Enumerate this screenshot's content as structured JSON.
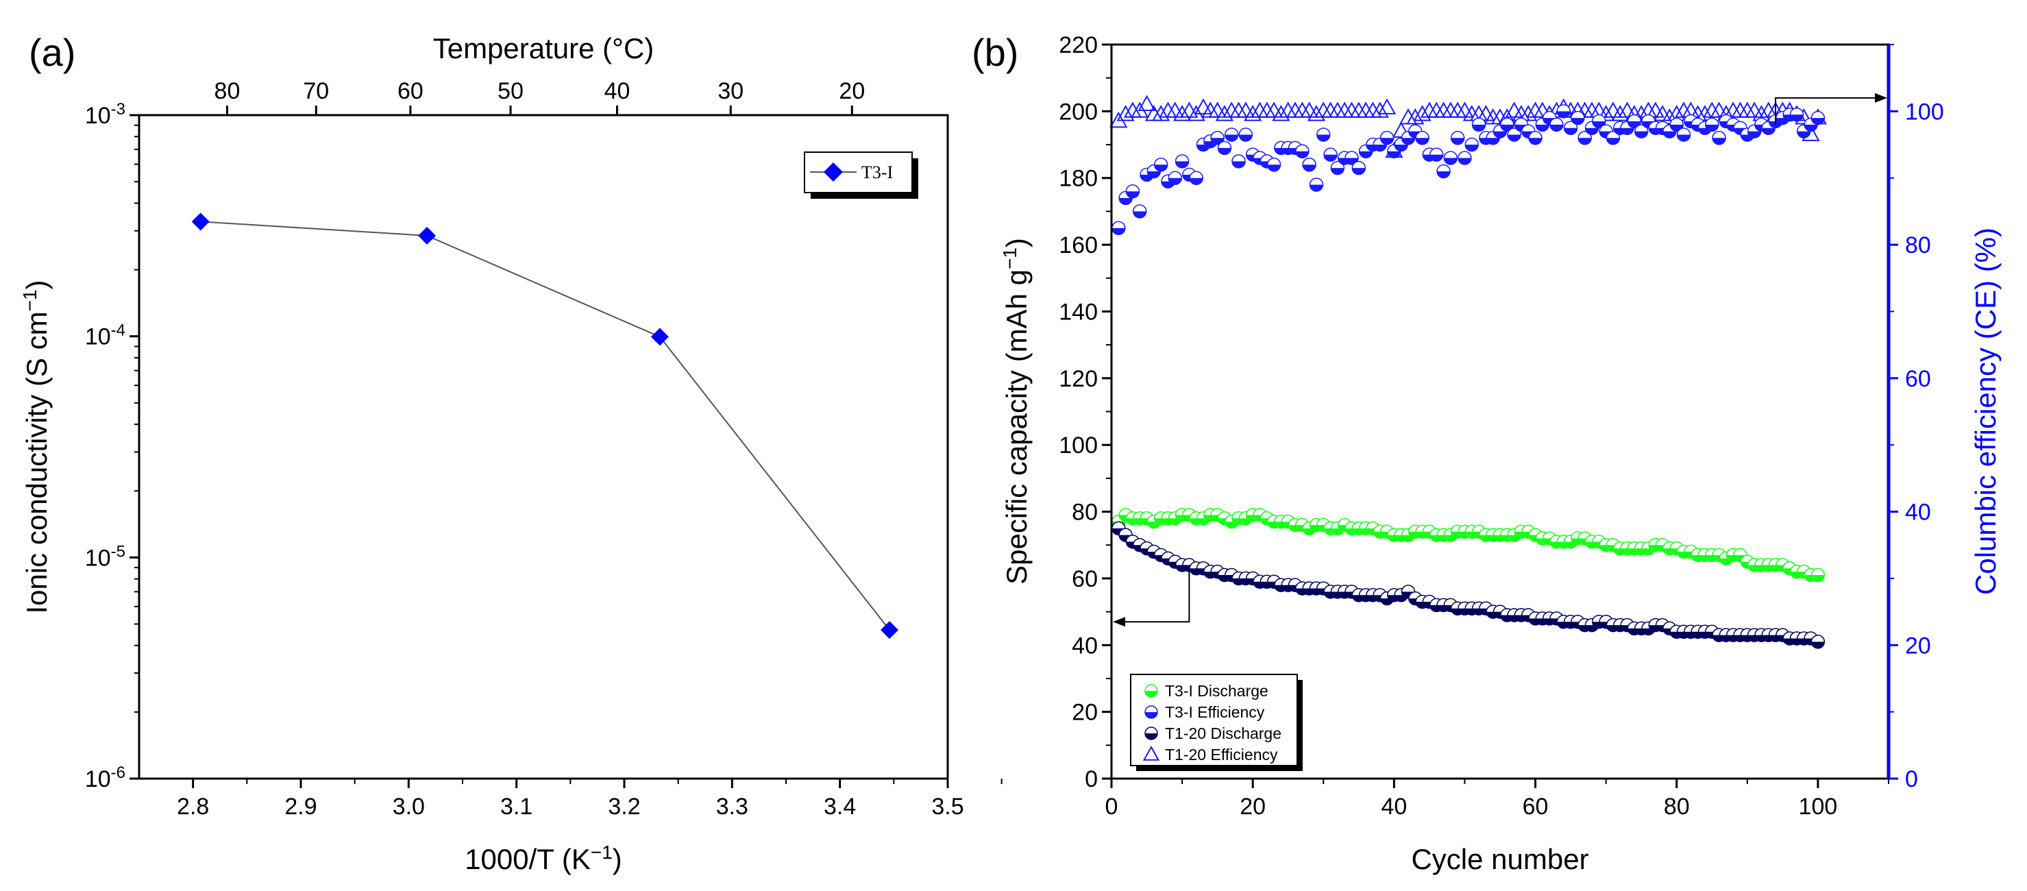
{
  "chart_data": [
    {
      "type": "line",
      "panel_label": "(a)",
      "title": "",
      "xlabel": "1000/T (K",
      "xlabel_sup": "−1",
      "xlabel_tail": ")",
      "ylabel": "Ionic conductivity (S cm",
      "ylabel_sup": "−1",
      "ylabel_tail": ")",
      "xlim": [
        2.75,
        3.5
      ],
      "ylim_log10": [
        -6,
        -3
      ],
      "yscale": "log",
      "x_ticks": [
        2.8,
        2.9,
        3.0,
        3.1,
        3.2,
        3.3,
        3.4,
        3.5
      ],
      "x_tick_labels": [
        "2.8",
        "2.9",
        "3.0",
        "3.1",
        "3.2",
        "3.3",
        "3.4",
        "3.5"
      ],
      "y_tick_exponents": [
        -6,
        -5,
        -4,
        -3
      ],
      "y_tick_base": "10",
      "y_tick_exp_labels": [
        "-6",
        "-5",
        "-4",
        "-3"
      ],
      "top_axis": {
        "label": "Temperature (°C)",
        "ticks_celsius": [
          80,
          70,
          60,
          50,
          40,
          30,
          20
        ],
        "tick_labels": [
          "80",
          "70",
          "60",
          "50",
          "40",
          "30",
          "20"
        ]
      },
      "legend": {
        "placement": "top-right",
        "entries": [
          "T3-I"
        ]
      },
      "series": [
        {
          "name": "T3-I",
          "color": "#0000ff",
          "line_color": "#555555",
          "marker": "diamond",
          "x": [
            2.807,
            3.017,
            3.233,
            3.446
          ],
          "y": [
            0.00033,
            0.000285,
            9.95e-05,
            4.7e-06
          ]
        }
      ]
    },
    {
      "type": "scatter",
      "panel_label": "(b)",
      "title": "",
      "xlabel": "Cycle number",
      "ylabel": "Specific capacity (mAh g",
      "ylabel_sup": "−1",
      "ylabel_tail": ")",
      "y2label": "Columbic efficiency (CE) (%)",
      "xlim": [
        0,
        110
      ],
      "ylim": [
        0,
        220
      ],
      "y2lim": [
        0,
        110
      ],
      "x_ticks": [
        0,
        20,
        40,
        60,
        80,
        100
      ],
      "x_tick_labels": [
        "0",
        "20",
        "40",
        "60",
        "80",
        "100"
      ],
      "y_ticks": [
        0,
        20,
        40,
        60,
        80,
        100,
        120,
        140,
        160,
        180,
        200,
        220
      ],
      "y_tick_labels": [
        "0",
        "20",
        "40",
        "60",
        "80",
        "100",
        "120",
        "140",
        "160",
        "180",
        "200",
        "220"
      ],
      "y2_ticks": [
        0,
        20,
        40,
        60,
        80,
        100
      ],
      "y2_tick_labels": [
        "0",
        "20",
        "40",
        "60",
        "80",
        "100"
      ],
      "left_axis_color": "#000000",
      "right_axis_color": "#0000ff",
      "legend": {
        "placement": "bottom-left",
        "entries": [
          "T3-I  Discharge",
          "T3-I  Efficiency",
          "T1-20 Discharge",
          "T1-20 Efficiency"
        ]
      },
      "arrows": [
        {
          "points_to": "left-axis",
          "at_cycle": 11,
          "at_value": 47
        },
        {
          "points_to": "right-axis",
          "at_cycle": 94,
          "at_value": 204
        }
      ],
      "series": [
        {
          "name": "T3-I  Discharge",
          "axis": "left",
          "marker": "circle-half",
          "color": "#1aff1a",
          "x": "1..100",
          "y": [
            77,
            79,
            78,
            78,
            78,
            77,
            78,
            78,
            78,
            79,
            79,
            78,
            78,
            79,
            79,
            78,
            77,
            78,
            78,
            79,
            79,
            78,
            77,
            77,
            77,
            76,
            76,
            75,
            76,
            76,
            75,
            75,
            76,
            75,
            75,
            75,
            75,
            74,
            74,
            73,
            73,
            73,
            74,
            74,
            74,
            73,
            73,
            73,
            74,
            74,
            74,
            74,
            73,
            73,
            73,
            73,
            73,
            74,
            74,
            73,
            72,
            72,
            71,
            71,
            71,
            72,
            72,
            71,
            71,
            70,
            70,
            69,
            69,
            69,
            69,
            69,
            70,
            70,
            69,
            69,
            68,
            68,
            67,
            67,
            67,
            67,
            66,
            67,
            67,
            65,
            64,
            64,
            64,
            64,
            64,
            63,
            62,
            62,
            61,
            61
          ]
        },
        {
          "name": "T3-I  Efficiency",
          "axis": "right",
          "marker": "circle-half",
          "color": "#1a1aff",
          "x": "1..100",
          "y": [
            82.5,
            87,
            88,
            85,
            90.5,
            91,
            92,
            89.5,
            90,
            92.5,
            90.5,
            90,
            95,
            95.5,
            96,
            94.5,
            96.5,
            92.5,
            96.5,
            93.5,
            93,
            92.5,
            92,
            94.5,
            94.5,
            94.5,
            94,
            92,
            89,
            96.5,
            93.5,
            91.5,
            93,
            93,
            91.5,
            94,
            95,
            95,
            96,
            94,
            95,
            96,
            97,
            96,
            93.5,
            93.5,
            91,
            93,
            96,
            93,
            95,
            98,
            96,
            96,
            97,
            98,
            96.5,
            98,
            97,
            96,
            98,
            99,
            98,
            100,
            97.5,
            99,
            96,
            97.5,
            98.5,
            97,
            96,
            97.5,
            97.5,
            98.5,
            97,
            98.5,
            97.5,
            97.5,
            97,
            98,
            96.5,
            98.5,
            98,
            97.5,
            98,
            96,
            98.5,
            98,
            97.5,
            96.5,
            97,
            98,
            97.5,
            98.5,
            99,
            99.5,
            99.5,
            97,
            98,
            99
          ]
        },
        {
          "name": "T1-20 Discharge",
          "axis": "left",
          "marker": "circle-half",
          "color": "#00005a",
          "x": "1..100",
          "y": [
            75,
            73,
            71,
            70,
            69,
            68,
            67,
            66,
            65,
            64,
            64,
            63,
            63,
            62,
            62,
            61,
            61,
            60,
            60,
            60,
            59,
            59,
            59,
            58,
            58,
            58,
            57,
            57,
            57,
            57,
            56,
            56,
            56,
            56,
            55,
            55,
            55,
            55,
            54,
            55,
            55,
            56,
            54,
            53,
            53,
            52,
            52,
            52,
            51,
            51,
            51,
            51,
            51,
            50,
            50,
            49,
            49,
            49,
            49,
            48,
            48,
            48,
            48,
            47,
            47,
            47,
            46,
            46,
            47,
            47,
            46,
            46,
            46,
            45,
            45,
            45,
            46,
            46,
            45,
            44,
            44,
            44,
            44,
            44,
            44,
            43,
            43,
            43,
            43,
            43,
            43,
            43,
            43,
            43,
            43,
            42,
            42,
            42,
            42,
            41
          ]
        },
        {
          "name": "T1-20 Efficiency",
          "axis": "right",
          "marker": "triangle-open",
          "color": "#1a1aff",
          "x": "1..100",
          "y": [
            98.5,
            99.5,
            100,
            100,
            101,
            99.5,
            99.5,
            100,
            100,
            99.5,
            100,
            99.5,
            100.5,
            100,
            100,
            99.5,
            100,
            100,
            100,
            99.5,
            100,
            100,
            100,
            99.5,
            100,
            100,
            100,
            100,
            99.5,
            100,
            100,
            100,
            100,
            100,
            100,
            100,
            100,
            100,
            100.5,
            94,
            97,
            99,
            99,
            99.5,
            100,
            100,
            100,
            100,
            100,
            100,
            99.5,
            99.5,
            99.5,
            99,
            99,
            99,
            100,
            99.5,
            99.5,
            100,
            100,
            99.5,
            100,
            100.5,
            100,
            100,
            100,
            100,
            100,
            99.5,
            100,
            99.5,
            100,
            99.5,
            99.5,
            100,
            100,
            99.5,
            99,
            99.5,
            100,
            100,
            99.5,
            99.5,
            100,
            100,
            99.5,
            100,
            100,
            100,
            100,
            99.5,
            100,
            100,
            100,
            100,
            99.5,
            99,
            96.5,
            99
          ]
        }
      ]
    }
  ]
}
